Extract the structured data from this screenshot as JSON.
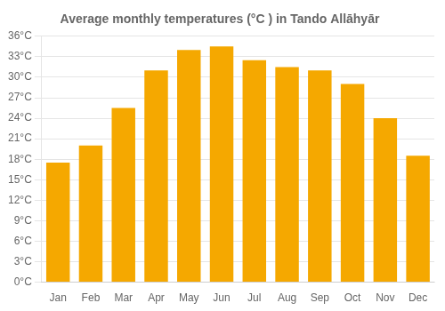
{
  "chart_data": {
    "type": "bar",
    "title": "Average monthly temperatures (°C ) in Tando Allāhyār",
    "categories": [
      "Jan",
      "Feb",
      "Mar",
      "Apr",
      "May",
      "Jun",
      "Jul",
      "Aug",
      "Sep",
      "Oct",
      "Nov",
      "Dec"
    ],
    "values": [
      17.5,
      20.0,
      25.5,
      31.0,
      34.0,
      34.5,
      32.5,
      31.5,
      31.0,
      29.0,
      24.0,
      18.5
    ],
    "color": "#F5A800",
    "ylim": [
      0,
      36
    ],
    "yticks": [
      {
        "value": 0,
        "label": "0°C"
      },
      {
        "value": 3,
        "label": "3°C"
      },
      {
        "value": 6,
        "label": "6°C"
      },
      {
        "value": 9,
        "label": "9°C"
      },
      {
        "value": 12,
        "label": "12°C"
      },
      {
        "value": 15,
        "label": "15°C"
      },
      {
        "value": 18,
        "label": "18°C"
      },
      {
        "value": 21,
        "label": "21°C"
      },
      {
        "value": 24,
        "label": "24°C"
      },
      {
        "value": 27,
        "label": "27°C"
      },
      {
        "value": 30,
        "label": "30°C"
      },
      {
        "value": 33,
        "label": "33°C"
      },
      {
        "value": 36,
        "label": "36°C"
      }
    ],
    "grid": true
  }
}
